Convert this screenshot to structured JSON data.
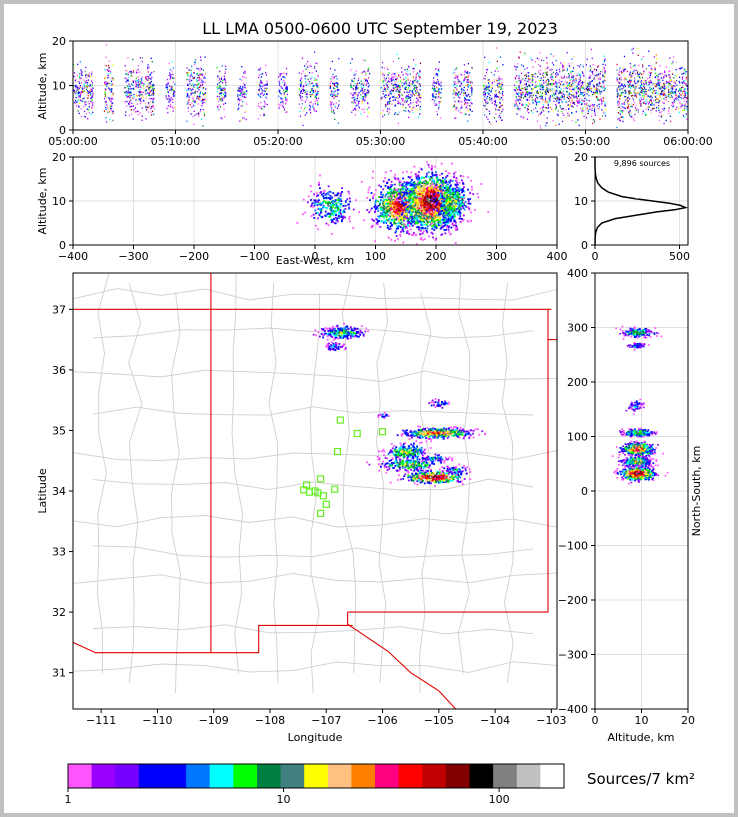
{
  "figure": {
    "title": "LL LMA 0500-0600 UTC September 19, 2023",
    "colorbar_label": "Sources/7 km²",
    "sources_label": "9,896 sources"
  },
  "chart_data": [
    {
      "panel": "altitude-vs-time",
      "type": "heatmap",
      "ylabel": "Altitude, km",
      "xlim": [
        "05:00:00",
        "06:00:00"
      ],
      "ylim": [
        0,
        20
      ],
      "x_ticks": [
        "05:00:00",
        "05:10:00",
        "05:20:00",
        "05:30:00",
        "05:40:00",
        "05:50:00",
        "06:00:00"
      ],
      "y_ticks": [
        0,
        10,
        20
      ],
      "grid": true,
      "activity": [
        {
          "minute": 0,
          "intensity": 0.5
        },
        {
          "minute": 1,
          "intensity": 0.6
        },
        {
          "minute": 3,
          "intensity": 0.8
        },
        {
          "minute": 5,
          "intensity": 0.6
        },
        {
          "minute": 6,
          "intensity": 0.5
        },
        {
          "minute": 7,
          "intensity": 0.7
        },
        {
          "minute": 9,
          "intensity": 0.5
        },
        {
          "minute": 11,
          "intensity": 0.6
        },
        {
          "minute": 12,
          "intensity": 0.7
        },
        {
          "minute": 14,
          "intensity": 0.6
        },
        {
          "minute": 16,
          "intensity": 0.4
        },
        {
          "minute": 18,
          "intensity": 0.4
        },
        {
          "minute": 20,
          "intensity": 0.4
        },
        {
          "minute": 22,
          "intensity": 0.4
        },
        {
          "minute": 23,
          "intensity": 0.5
        },
        {
          "minute": 25,
          "intensity": 0.5
        },
        {
          "minute": 27,
          "intensity": 0.4
        },
        {
          "minute": 28,
          "intensity": 0.5
        },
        {
          "minute": 30,
          "intensity": 0.5
        },
        {
          "minute": 31,
          "intensity": 0.6
        },
        {
          "minute": 32,
          "intensity": 0.5
        },
        {
          "minute": 33,
          "intensity": 0.6
        },
        {
          "minute": 35,
          "intensity": 0.5
        },
        {
          "minute": 37,
          "intensity": 0.5
        },
        {
          "minute": 38,
          "intensity": 0.6
        },
        {
          "minute": 40,
          "intensity": 0.5
        },
        {
          "minute": 41,
          "intensity": 0.6
        },
        {
          "minute": 43,
          "intensity": 0.6
        },
        {
          "minute": 44,
          "intensity": 0.7
        },
        {
          "minute": 45,
          "intensity": 0.7
        },
        {
          "minute": 46,
          "intensity": 0.8
        },
        {
          "minute": 47,
          "intensity": 0.7
        },
        {
          "minute": 48,
          "intensity": 0.8
        },
        {
          "minute": 49,
          "intensity": 0.7
        },
        {
          "minute": 50,
          "intensity": 0.7
        },
        {
          "minute": 51,
          "intensity": 0.8
        },
        {
          "minute": 53,
          "intensity": 0.8
        },
        {
          "minute": 54,
          "intensity": 0.9
        },
        {
          "minute": 55,
          "intensity": 0.8
        },
        {
          "minute": 56,
          "intensity": 0.7
        },
        {
          "minute": 57,
          "intensity": 0.8
        },
        {
          "minute": 58,
          "intensity": 0.7
        },
        {
          "minute": 59,
          "intensity": 0.6
        }
      ]
    },
    {
      "panel": "altitude-vs-east-west",
      "type": "heatmap",
      "xlabel": "East-West, km",
      "ylabel": "Altitude, km",
      "xlim": [
        -400,
        400
      ],
      "ylim": [
        0,
        20
      ],
      "x_ticks": [
        -400,
        -300,
        -200,
        -100,
        0,
        100,
        200,
        300,
        400
      ],
      "y_ticks": [
        0,
        10,
        20
      ],
      "grid": true,
      "clusters": [
        {
          "x": 25,
          "y": 9,
          "sx": 18,
          "sy": 2.2,
          "n": 260,
          "peak": 0.45
        },
        {
          "x": 140,
          "y": 9,
          "sx": 22,
          "sy": 2.8,
          "n": 900,
          "peak": 0.85
        },
        {
          "x": 190,
          "y": 10,
          "sx": 22,
          "sy": 3.2,
          "n": 1300,
          "peak": 1.0
        },
        {
          "x": 225,
          "y": 10,
          "sx": 14,
          "sy": 2.5,
          "n": 400,
          "peak": 0.6
        }
      ]
    },
    {
      "panel": "altitude-histogram",
      "type": "line",
      "xlim": [
        0,
        550
      ],
      "ylim": [
        0,
        20
      ],
      "x_ticks": [
        0,
        500
      ],
      "y_ticks": [
        0,
        10,
        20
      ],
      "grid": true,
      "altitude_km": [
        0,
        2,
        3,
        4,
        5,
        6,
        7,
        7.5,
        8,
        8.5,
        9,
        9.5,
        10,
        10.5,
        11,
        12,
        13,
        14,
        15,
        16,
        17,
        18,
        19,
        20
      ],
      "count": [
        0,
        1,
        5,
        15,
        40,
        120,
        280,
        360,
        470,
        535,
        505,
        440,
        340,
        240,
        160,
        80,
        40,
        18,
        8,
        3,
        1,
        0,
        0,
        0
      ]
    },
    {
      "panel": "plan-view",
      "type": "scatter",
      "xlabel": "Longitude",
      "ylabel": "Latitude",
      "xlim": [
        -111.5,
        -102.9
      ],
      "ylim": [
        30.4,
        37.6
      ],
      "x_ticks": [
        -111,
        -110,
        -109,
        -108,
        -107,
        -106,
        -105,
        -104,
        -103
      ],
      "y_ticks": [
        31,
        32,
        33,
        34,
        35,
        36,
        37
      ],
      "stations": [
        {
          "lon": -107.35,
          "lat": 34.1
        },
        {
          "lon": -107.1,
          "lat": 34.2
        },
        {
          "lon": -107.4,
          "lat": 34.02
        },
        {
          "lon": -107.3,
          "lat": 33.98
        },
        {
          "lon": -107.2,
          "lat": 34.0
        },
        {
          "lon": -107.05,
          "lat": 33.92
        },
        {
          "lon": -107.15,
          "lat": 33.97
        },
        {
          "lon": -106.85,
          "lat": 34.03
        },
        {
          "lon": -107.0,
          "lat": 33.78
        },
        {
          "lon": -107.1,
          "lat": 33.63
        },
        {
          "lon": -106.8,
          "lat": 34.65
        },
        {
          "lon": -106.75,
          "lat": 35.17
        },
        {
          "lon": -106.45,
          "lat": 34.95
        },
        {
          "lon": -106.0,
          "lat": 34.98
        }
      ],
      "clusters": [
        {
          "lon": -106.75,
          "lat": 36.63,
          "slon": 0.18,
          "slat": 0.05,
          "n": 220,
          "peak": 0.5
        },
        {
          "lon": -106.85,
          "lat": 36.4,
          "slon": 0.08,
          "slat": 0.03,
          "n": 60,
          "peak": 0.3
        },
        {
          "lon": -105.05,
          "lat": 34.97,
          "slon": 0.3,
          "slat": 0.04,
          "n": 450,
          "peak": 0.8
        },
        {
          "lon": -105.6,
          "lat": 34.66,
          "slon": 0.18,
          "slat": 0.06,
          "n": 220,
          "peak": 0.6
        },
        {
          "lon": -105.55,
          "lat": 34.45,
          "slon": 0.25,
          "slat": 0.05,
          "n": 220,
          "peak": 0.6
        },
        {
          "lon": -105.1,
          "lat": 34.24,
          "slon": 0.25,
          "slat": 0.05,
          "n": 360,
          "peak": 1.0
        },
        {
          "lon": -105.1,
          "lat": 34.55,
          "slon": 0.12,
          "slat": 0.03,
          "n": 60,
          "peak": 0.35
        },
        {
          "lon": -105.0,
          "lat": 35.45,
          "slon": 0.1,
          "slat": 0.03,
          "n": 40,
          "peak": 0.3
        },
        {
          "lon": -106.0,
          "lat": 35.27,
          "slon": 0.05,
          "slat": 0.03,
          "n": 15,
          "peak": 0.2
        },
        {
          "lon": -104.7,
          "lat": 34.35,
          "slon": 0.1,
          "slat": 0.04,
          "n": 60,
          "peak": 0.35
        }
      ]
    },
    {
      "panel": "north-south-vs-altitude",
      "type": "heatmap",
      "xlabel": "Altitude, km",
      "ylabel": "North-South, km",
      "xlim": [
        0,
        20
      ],
      "ylim": [
        -400,
        400
      ],
      "x_ticks": [
        0,
        10,
        20
      ],
      "y_ticks": [
        -400,
        -300,
        -200,
        -100,
        0,
        100,
        200,
        300,
        400
      ],
      "grid": true,
      "clusters": [
        {
          "x": 9,
          "y": 292,
          "sx": 1.6,
          "sy": 4,
          "n": 180,
          "peak": 0.5
        },
        {
          "x": 9,
          "y": 268,
          "sx": 1.0,
          "sy": 3,
          "n": 50,
          "peak": 0.3
        },
        {
          "x": 8.5,
          "y": 157,
          "sx": 0.9,
          "sy": 5,
          "n": 60,
          "peak": 0.3
        },
        {
          "x": 9,
          "y": 108,
          "sx": 1.6,
          "sy": 3,
          "n": 260,
          "peak": 0.6
        },
        {
          "x": 9,
          "y": 78,
          "sx": 1.8,
          "sy": 6,
          "n": 380,
          "peak": 0.8
        },
        {
          "x": 9,
          "y": 55,
          "sx": 1.6,
          "sy": 5,
          "n": 280,
          "peak": 0.6
        },
        {
          "x": 9,
          "y": 33,
          "sx": 1.8,
          "sy": 6,
          "n": 420,
          "peak": 1.0
        }
      ]
    },
    {
      "panel": "colorbar",
      "type": "heatmap",
      "scale": "log",
      "range": [
        1,
        200
      ],
      "tick_labels": [
        "1",
        "10",
        "100"
      ],
      "colors": [
        "#ff55ff",
        "#9900ff",
        "#7700ff",
        "#0000ff",
        "#0000ff",
        "#0077ff",
        "#00ffff",
        "#00ff00",
        "#008040",
        "#408080",
        "#ffff00",
        "#ffc080",
        "#ff8000",
        "#ff0080",
        "#ff0000",
        "#c00000",
        "#800000",
        "#000000",
        "#808080",
        "#c0c0c0",
        "#ffffff"
      ]
    }
  ]
}
